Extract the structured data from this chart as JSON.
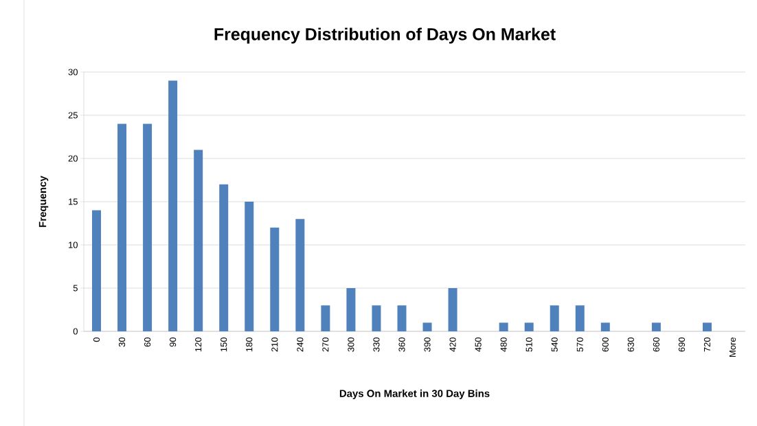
{
  "chart_data": {
    "type": "bar",
    "title": "Frequency Distribution of Days On Market",
    "xlabel": "Days On Market in 30 Day Bins",
    "ylabel": "Frequency",
    "categories": [
      "0",
      "30",
      "60",
      "90",
      "120",
      "150",
      "180",
      "210",
      "240",
      "270",
      "300",
      "330",
      "360",
      "390",
      "420",
      "450",
      "480",
      "510",
      "540",
      "570",
      "600",
      "630",
      "660",
      "690",
      "720",
      "More"
    ],
    "values": [
      14,
      24,
      24,
      29,
      21,
      17,
      15,
      12,
      13,
      3,
      5,
      3,
      3,
      1,
      5,
      0,
      1,
      1,
      3,
      3,
      1,
      0,
      1,
      0,
      1,
      0
    ],
    "color": "#4f81bd",
    "ylim": [
      0,
      30
    ],
    "yticks": [
      0,
      5,
      10,
      15,
      20,
      25,
      30
    ],
    "grid": "y"
  }
}
